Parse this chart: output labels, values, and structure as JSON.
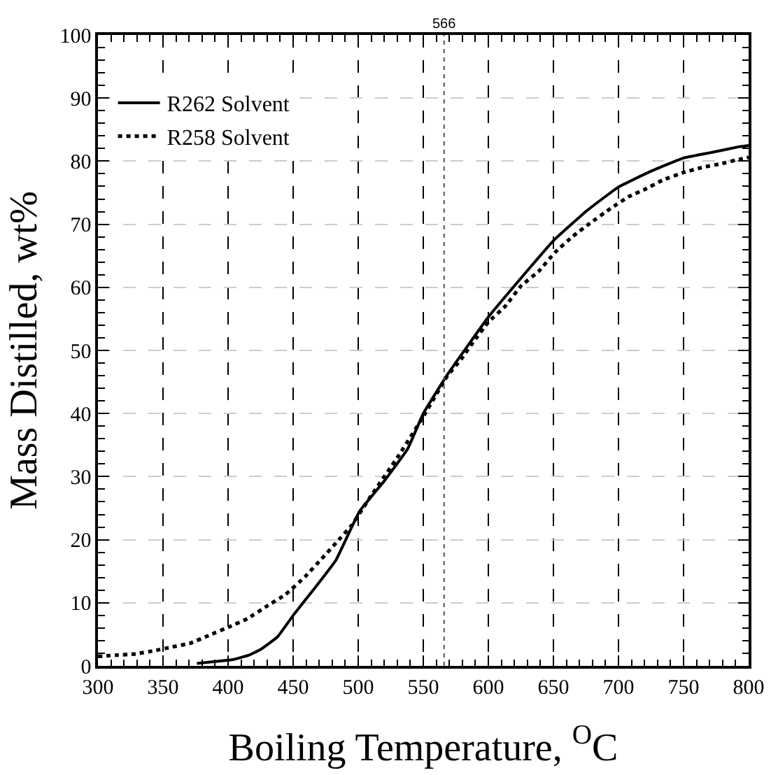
{
  "chart_data": {
    "type": "line",
    "xlabel": "Boiling Temperature, $^{O}$C",
    "ylabel": "Mass Distilled, wt%",
    "xlim": [
      300,
      800
    ],
    "xticks": [
      300,
      350,
      400,
      450,
      500,
      550,
      600,
      650,
      700,
      750,
      800
    ],
    "ylim": [
      0,
      100
    ],
    "yticks": [
      0,
      10,
      20,
      30,
      40,
      50,
      60,
      70,
      80,
      90,
      100
    ],
    "grid": true,
    "legend": "top left",
    "marker": "none",
    "ref_lines": [
      {
        "axis": "x",
        "value": 566,
        "label": "566",
        "line_style": "dotted",
        "color": "#555555"
      }
    ],
    "series": [
      {
        "name": "R262 Solvent",
        "color": "#000000",
        "line_style": "solid",
        "x": [
          376,
          390,
          404,
          416,
          425,
          438,
          450,
          468,
          483,
          501,
          520,
          538,
          550,
          568,
          600,
          624,
          650,
          676,
          700,
          726,
          750,
          772,
          793,
          800
        ],
        "values": [
          0.4,
          0.7,
          1,
          1.7,
          2.6,
          4.6,
          8,
          12.7,
          16.8,
          24.5,
          29.3,
          34.4,
          40,
          46,
          55.3,
          61.2,
          67.4,
          72.2,
          75.9,
          78.5,
          80.5,
          81.4,
          82.3,
          82.5
        ]
      },
      {
        "name": "R258 Solvent",
        "color": "#000000",
        "line_style": "dotted",
        "x": [
          300,
          314,
          329,
          343,
          357,
          371,
          386,
          401,
          415,
          430,
          444,
          459,
          472,
          483,
          495,
          510,
          530,
          550,
          568,
          579,
          589,
          600,
          613,
          625,
          639,
          651,
          665,
          679,
          694,
          708,
          720,
          734,
          750,
          764,
          779,
          793,
          800
        ],
        "values": [
          1.5,
          1.7,
          1.9,
          2.4,
          3,
          3.6,
          4.9,
          6.2,
          7.5,
          9.5,
          11.3,
          14.1,
          17,
          19.5,
          22.3,
          27,
          33,
          39.5,
          45.8,
          48.6,
          51.5,
          54.5,
          57,
          60.2,
          62.6,
          65.5,
          68.1,
          70.3,
          72.5,
          74.4,
          75.5,
          77,
          78.2,
          79,
          79.6,
          80.3,
          80.6
        ]
      }
    ]
  }
}
